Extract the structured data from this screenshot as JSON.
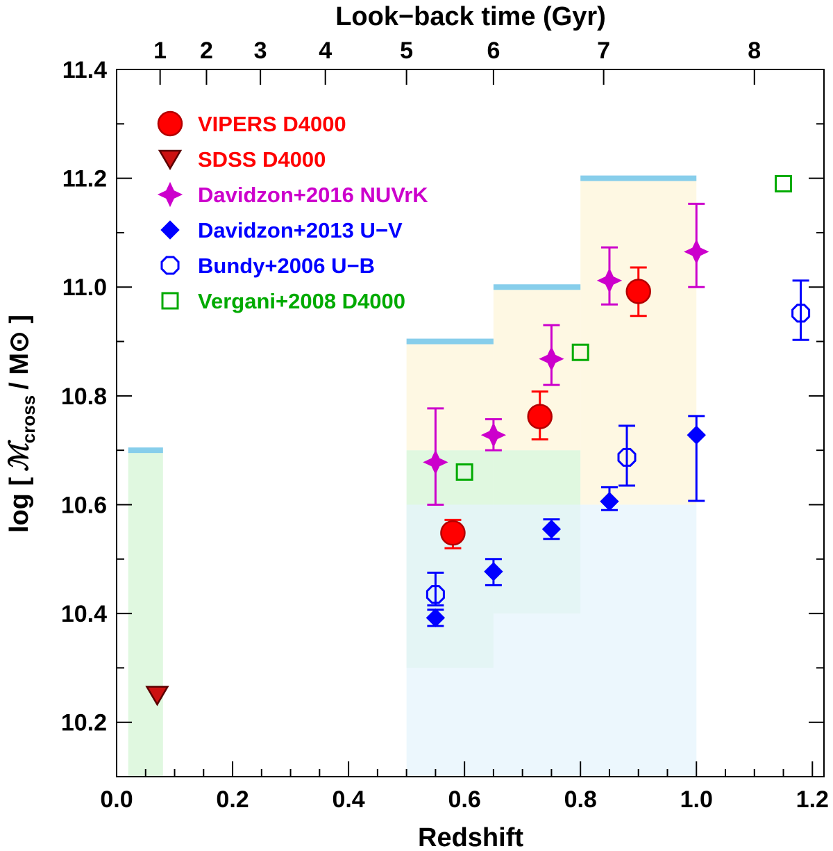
{
  "chart_data": {
    "type": "scatter",
    "title": "",
    "xlabel": "Redshift",
    "ylabel_prefix": "log [",
    "ylabel_symbol": "ℳ",
    "ylabel_subscript": "cross",
    "ylabel_suffix": "/ M⊙ ]",
    "top_axis_label": "Look−back time (Gyr)",
    "xlim": [
      0.0,
      1.22
    ],
    "ylim": [
      10.1,
      11.4
    ],
    "xticks": [
      0.0,
      0.2,
      0.4,
      0.6,
      0.8,
      1.0,
      1.2
    ],
    "xtick_labels": [
      "0.0",
      "0.2",
      "0.4",
      "0.6",
      "0.8",
      "1.0",
      "1.2"
    ],
    "yticks": [
      10.2,
      10.4,
      10.6,
      10.8,
      11.0,
      11.2,
      11.4
    ],
    "ytick_labels": [
      "10.2",
      "10.4",
      "10.6",
      "10.8",
      "11.0",
      "11.2",
      "11.4"
    ],
    "top_ticks": [
      {
        "label": "1",
        "z": 0.075
      },
      {
        "label": "2",
        "z": 0.155
      },
      {
        "label": "3",
        "z": 0.248
      },
      {
        "label": "4",
        "z": 0.36
      },
      {
        "label": "5",
        "z": 0.5
      },
      {
        "label": "6",
        "z": 0.65
      },
      {
        "label": "7",
        "z": 0.84
      },
      {
        "label": "8",
        "z": 1.1
      }
    ],
    "shaded_regions": [
      {
        "name": "sdss-mass-range",
        "x": [
          0.02,
          0.08
        ],
        "y": [
          10.1,
          10.7
        ],
        "color": "#d6f5d6"
      },
      {
        "name": "vipers-bin1-mass-range",
        "x": [
          0.5,
          0.65
        ],
        "y": [
          10.3,
          10.7
        ],
        "color": "#d6f5d6"
      },
      {
        "name": "vipers-bin2-mass-range",
        "x": [
          0.65,
          0.8
        ],
        "y": [
          10.4,
          10.7
        ],
        "color": "#d6f5d6"
      },
      {
        "name": "vipers-lower-completeness",
        "x": [
          0.5,
          1.0
        ],
        "y": [
          10.1,
          10.6
        ],
        "color": "#e6f4fc"
      },
      {
        "name": "vipers-upper-range-1",
        "x": [
          0.5,
          0.65
        ],
        "y": [
          10.7,
          10.9
        ],
        "color": "#fdf5da"
      },
      {
        "name": "vipers-upper-range-2",
        "x": [
          0.65,
          0.8
        ],
        "y": [
          10.7,
          11.0
        ],
        "color": "#fdf5da"
      },
      {
        "name": "vipers-upper-range-3",
        "x": [
          0.8,
          1.0
        ],
        "y": [
          10.6,
          11.2
        ],
        "color": "#fdf5da"
      }
    ],
    "limit_bars": [
      {
        "x": [
          0.02,
          0.08
        ],
        "y": 10.7
      },
      {
        "x": [
          0.5,
          0.65
        ],
        "y": 10.9
      },
      {
        "x": [
          0.65,
          0.8
        ],
        "y": 11.0
      },
      {
        "x": [
          0.8,
          1.0
        ],
        "y": 11.2
      }
    ],
    "limit_bar_color": "#87ceeb",
    "series": [
      {
        "name": "VIPERS D4000",
        "marker": "circle",
        "color": "#ff0000",
        "stroke": "#b30000",
        "points": [
          {
            "x": 0.58,
            "y": 10.548,
            "lo": 10.52,
            "hi": 10.572
          },
          {
            "x": 0.73,
            "y": 10.762,
            "lo": 10.72,
            "hi": 10.808
          },
          {
            "x": 0.9,
            "y": 10.992,
            "lo": 10.947,
            "hi": 11.036
          }
        ]
      },
      {
        "name": "SDSS D4000",
        "marker": "triangle-down",
        "color": "#cc1111",
        "stroke": "#5a0000",
        "points": [
          {
            "x": 0.07,
            "y": 10.25
          }
        ]
      },
      {
        "name": "Davidzon+2016 NUVrK",
        "marker": "star4",
        "color": "#cc00cc",
        "stroke": "#cc00cc",
        "points": [
          {
            "x": 0.55,
            "y": 10.678,
            "lo": 10.6,
            "hi": 10.777
          },
          {
            "x": 0.65,
            "y": 10.728,
            "lo": 10.7,
            "hi": 10.757
          },
          {
            "x": 0.75,
            "y": 10.868,
            "lo": 10.82,
            "hi": 10.93
          },
          {
            "x": 0.85,
            "y": 11.012,
            "lo": 10.968,
            "hi": 11.073
          },
          {
            "x": 1.0,
            "y": 11.065,
            "lo": 11.0,
            "hi": 11.153
          }
        ]
      },
      {
        "name": "Davidzon+2013 U−V",
        "marker": "diamond",
        "color": "#0000ff",
        "stroke": "#0000ff",
        "points": [
          {
            "x": 0.55,
            "y": 10.392,
            "lo": 10.377,
            "hi": 10.407
          },
          {
            "x": 0.65,
            "y": 10.477,
            "lo": 10.452,
            "hi": 10.5
          },
          {
            "x": 0.75,
            "y": 10.555,
            "lo": 10.537,
            "hi": 10.573
          },
          {
            "x": 0.85,
            "y": 10.606,
            "lo": 10.59,
            "hi": 10.632
          },
          {
            "x": 1.0,
            "y": 10.728,
            "lo": 10.607,
            "hi": 10.763
          }
        ]
      },
      {
        "name": "Bundy+2006 U−B",
        "marker": "octagon",
        "color": "none",
        "stroke": "#0000ff",
        "points": [
          {
            "x": 0.55,
            "y": 10.435,
            "lo": 10.415,
            "hi": 10.475
          },
          {
            "x": 0.88,
            "y": 10.687,
            "lo": 10.635,
            "hi": 10.745
          },
          {
            "x": 1.18,
            "y": 10.952,
            "lo": 10.903,
            "hi": 11.012
          }
        ]
      },
      {
        "name": "Vergani+2008 D4000",
        "marker": "square",
        "color": "none",
        "stroke": "#00aa00",
        "points": [
          {
            "x": 0.6,
            "y": 10.66
          },
          {
            "x": 0.8,
            "y": 10.88
          },
          {
            "x": 1.15,
            "y": 11.19
          }
        ]
      }
    ],
    "legend": [
      {
        "label": "VIPERS D4000",
        "text_color": "#ff0000"
      },
      {
        "label": "SDSS D4000",
        "text_color": "#ff0000"
      },
      {
        "label": "Davidzon+2016 NUVrK",
        "text_color": "#cc00cc"
      },
      {
        "label": "Davidzon+2013 U−V",
        "text_color": "#0000ff"
      },
      {
        "label": "Bundy+2006 U−B",
        "text_color": "#0000ff"
      },
      {
        "label": "Vergani+2008 D4000",
        "text_color": "#00aa00"
      }
    ],
    "legend_position": "top-left"
  }
}
